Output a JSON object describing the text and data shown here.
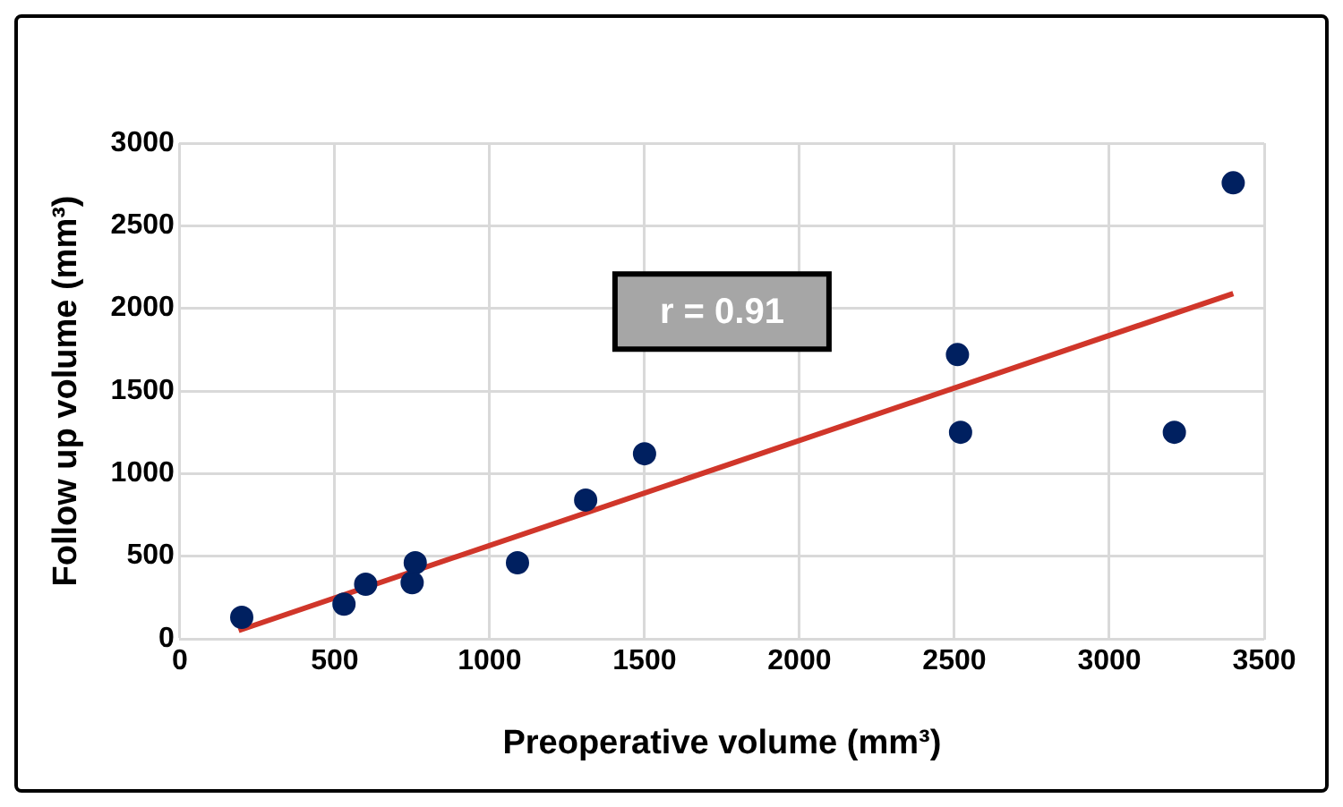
{
  "chart_data": {
    "type": "scatter",
    "xlabel": "Preoperative volume (mm³)",
    "ylabel": "Follow up volume (mm³)",
    "series": [
      {
        "color": "#002060",
        "marker": "circle",
        "x": [
          200,
          530,
          600,
          750,
          760,
          1090,
          1310,
          1500,
          2510,
          2520,
          3210,
          3400
        ],
        "values": [
          130,
          210,
          330,
          340,
          460,
          460,
          840,
          1120,
          1720,
          1250,
          1250,
          2760
        ]
      },
      {
        "type": "line",
        "color": "#d0362a",
        "x": [
          190,
          3400
        ],
        "values": [
          50,
          2090
        ]
      }
    ],
    "xlim": [
      0,
      3500
    ],
    "xticks": [
      0,
      500,
      1000,
      1500,
      2000,
      2500,
      3000,
      3500
    ],
    "ylim": [
      0,
      3000
    ],
    "yticks": [
      0,
      500,
      1000,
      1500,
      2000,
      2500,
      3000
    ],
    "grid": true,
    "legend": false,
    "annotations": [
      "r = 0.91"
    ]
  }
}
